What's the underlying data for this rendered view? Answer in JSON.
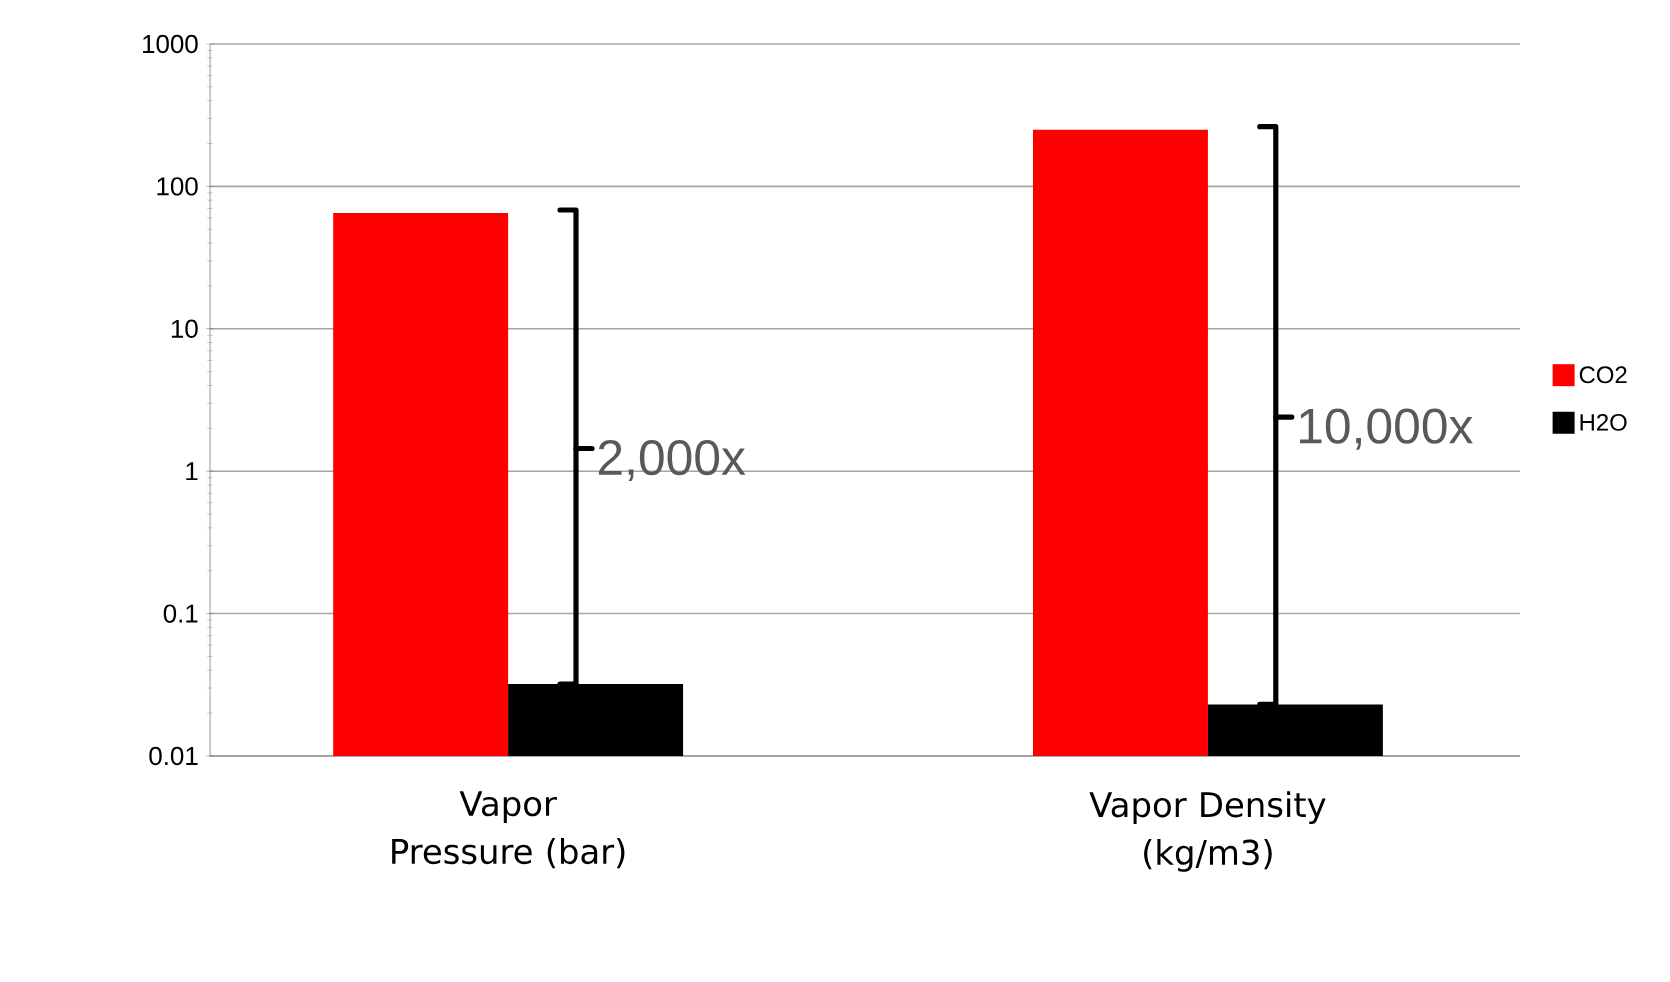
{
  "chart_data": {
    "type": "bar",
    "log": "y",
    "categories": [
      "Vapor Pressure (bar)",
      "Vapor Density (kg/m3)"
    ],
    "series": [
      {
        "name": "CO2",
        "color": "#ff0000",
        "values": [
          65,
          250
        ]
      },
      {
        "name": "H2O",
        "color": "#000000",
        "values": [
          0.032,
          0.023
        ]
      }
    ],
    "ylim": [
      0.01,
      1000
    ],
    "yticks": [
      0.01,
      0.1,
      1,
      10,
      100,
      1000
    ],
    "grid": "y",
    "legend": "right",
    "annotations": [
      "2,000x",
      "10,000x"
    ]
  }
}
